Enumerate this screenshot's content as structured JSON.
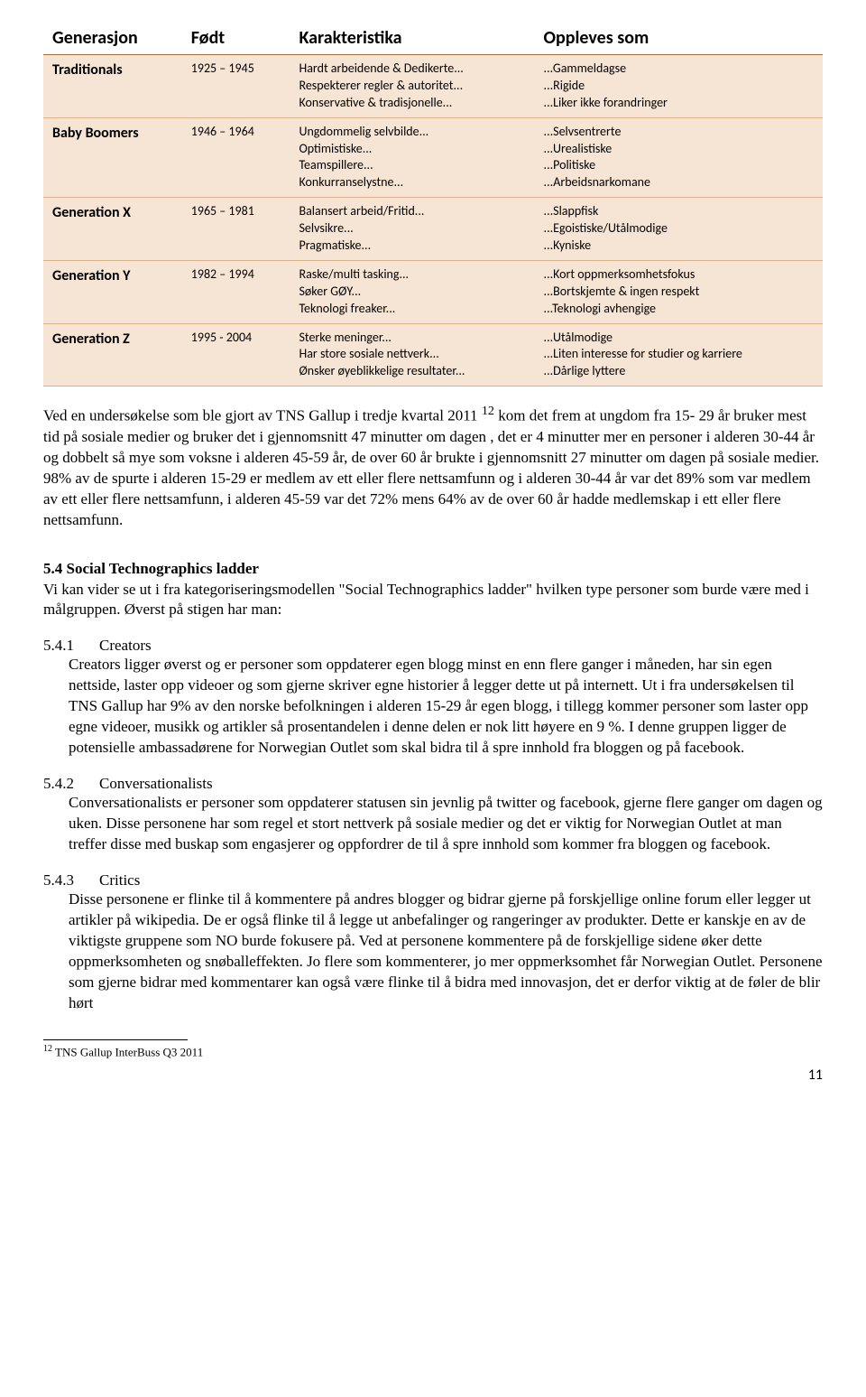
{
  "table": {
    "headers": [
      "Generasjon",
      "Født",
      "Karakteristika",
      "Oppleves som"
    ],
    "rows": [
      {
        "gen": "Traditionals",
        "years": "1925 – 1945",
        "char": "Hardt arbeidende & Dedikerte...\nRespekterer regler & autoritet...\nKonservative & tradisjonelle...",
        "perc": "...Gammeldagse\n...Rigide\n...Liker ikke forandringer"
      },
      {
        "gen": "Baby Boomers",
        "years": "1946 – 1964",
        "char": "Ungdommelig selvbilde...\nOptimistiske...\nTeamspillere...\nKonkurranselystne...",
        "perc": "...Selvsentrerte\n...Urealistiske\n...Politiske\n...Arbeidsnarkomane"
      },
      {
        "gen": "Generation X",
        "years": "1965 – 1981",
        "char": "Balansert arbeid/Fritid...\nSelvsikre...\nPragmatiske...",
        "perc": "...Slappfisk\n...Egoistiske/Utålmodige\n...Kyniske"
      },
      {
        "gen": "Generation Y",
        "years": "1982 – 1994",
        "char": "Raske/multi tasking...\nSøker GØY...\nTeknologi freaker...",
        "perc": "...Kort oppmerksomhetsfokus\n...Bortskjemte & ingen respekt\n...Teknologi avhengige"
      },
      {
        "gen": "Generation Z",
        "years": "1995 - 2004",
        "char": "Sterke meninger...\nHar store sosiale nettverk...\nØnsker øyeblikkelige resultater...",
        "perc": "...Utålmodige\n...Liten interesse for studier og karriere\n...Dårlige lyttere"
      }
    ],
    "header_bg": "#ffffff",
    "row_bg": "#f6e4d4",
    "border_color": "#d9b28c",
    "header_border_color": "#a66e3e",
    "font_family": "Calibri",
    "header_fontsize": 20,
    "cell_fontsize": 14
  },
  "para1_a": "Ved en undersøkelse som ble gjort av TNS Gallup i tredje kvartal 2011 ",
  "para1_sup": "12",
  "para1_b": " kom det frem at ungdom fra 15- 29 år bruker mest tid på sosiale medier og bruker det i gjennomsnitt 47 minutter om dagen , det er 4 minutter mer en personer i alderen 30-44 år og dobbelt så mye som voksne i alderen 45-59 år, de over 60 år brukte i gjennomsnitt 27 minutter om dagen på sosiale medier. 98% av de spurte i alderen 15-29 er medlem av ett eller flere nettsamfunn og i alderen 30-44 år var det 89% som var medlem av ett eller flere nettsamfunn, i alderen 45-59 var det 72% mens 64% av de over 60 år hadde medlemskap i ett eller flere nettsamfunn.",
  "section_title": "5.4 Social Technographics ladder",
  "section_desc": "Vi kan vider se ut i fra kategoriseringsmodellen \"Social Technographics ladder\" hvilken type personer som burde være med i målgruppen. Øverst på stigen har man:",
  "subs": [
    {
      "num": "5.4.1",
      "title": "Creators",
      "body": "Creators ligger øverst og er personer som oppdaterer egen blogg minst en enn flere ganger i måneden, har sin egen nettside, laster opp videoer og som gjerne skriver egne historier å legger dette ut på internett. Ut i fra undersøkelsen til TNS Gallup har 9% av den norske befolkningen i alderen 15-29 år egen blogg, i tillegg kommer personer som laster opp egne videoer, musikk og artikler så prosentandelen i denne delen er nok litt høyere en 9 %. I denne gruppen ligger de potensielle ambassadørene for Norwegian Outlet som skal bidra til å spre innhold fra bloggen og på facebook."
    },
    {
      "num": "5.4.2",
      "title": "Conversationalists",
      "body": "Conversationalists er personer som oppdaterer statusen sin jevnlig på twitter og facebook, gjerne flere ganger om dagen og uken. Disse personene har som regel et stort nettverk på sosiale medier og det er viktig for Norwegian Outlet at man treffer disse med buskap som engasjerer og oppfordrer de til å spre innhold som kommer fra bloggen og facebook."
    },
    {
      "num": "5.4.3",
      "title": "Critics",
      "body": "Disse personene er flinke til å kommentere på andres blogger og bidrar gjerne på forskjellige online forum eller legger ut artikler på wikipedia. De er også flinke til å legge ut anbefalinger og rangeringer av produkter. Dette er kanskje en av de viktigste gruppene som NO burde fokusere på. Ved at personene kommentere på de forskjellige sidene øker dette oppmerksomheten og snøballeffekten. Jo flere som kommenterer, jo mer oppmerksomhet får Norwegian Outlet. Personene som gjerne bidrar med kommentarer kan også være flinke til å bidra med innovasjon, det er derfor viktig at de føler de blir hørt"
    }
  ],
  "footnote_num": "12",
  "footnote_text": " TNS Gallup InterBuss Q3 2011",
  "page_num": "11"
}
